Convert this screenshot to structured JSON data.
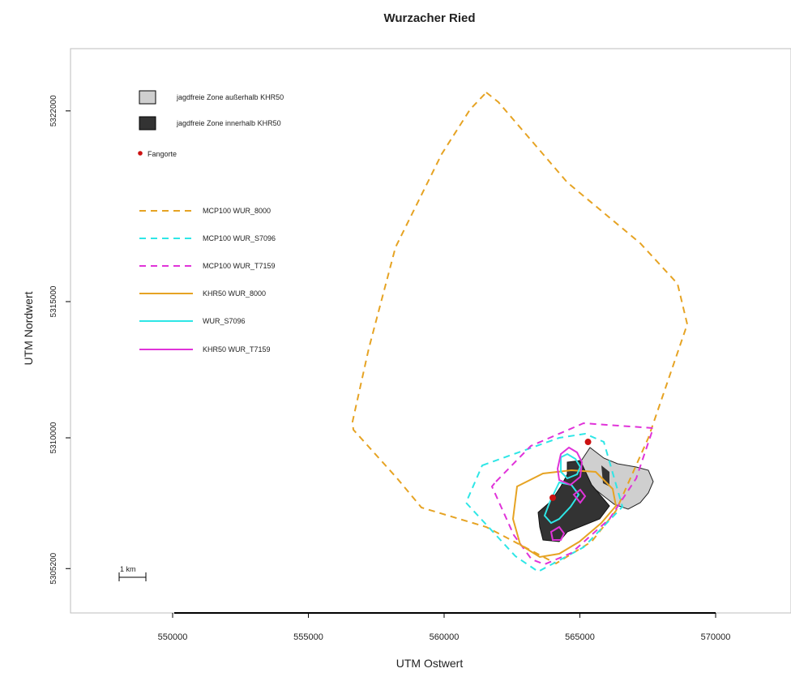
{
  "title": "Wurzacher Ried",
  "xlabel": "UTM Ostwert",
  "ylabel": "UTM Nordwert",
  "x_ticks": [
    {
      "value": 550000,
      "label": "550000"
    },
    {
      "value": 555000,
      "label": "555000"
    },
    {
      "value": 560000,
      "label": "560000"
    },
    {
      "value": 565000,
      "label": "565000"
    },
    {
      "value": 570000,
      "label": "570000"
    }
  ],
  "y_ticks": [
    {
      "value": 5305200,
      "label": "5305200"
    },
    {
      "value": 5310000,
      "label": "5310000"
    },
    {
      "value": 5315000,
      "label": "5315000"
    },
    {
      "value": 5322000,
      "label": "5322000"
    }
  ],
  "scale_bar": {
    "label": "1 km"
  },
  "legend": {
    "items": [
      {
        "key": "zone-outside",
        "label": "jagdfreie Zone außerhalb KHR50",
        "symbol": "box",
        "fill": "#cfcfcf"
      },
      {
        "key": "zone-inside",
        "label": "jagdfreie Zone innerhalb KHR50",
        "symbol": "box",
        "fill": "#333333"
      },
      {
        "key": "fangorte",
        "label": "Fangorte",
        "symbol": "point",
        "fill": "#cc1111"
      },
      {
        "key": "mcp-8000",
        "label": "MCP100 WUR_8000",
        "symbol": "line",
        "stroke": "#e6a323",
        "dash": true
      },
      {
        "key": "mcp-s7096",
        "label": "MCP100 WUR_S7096",
        "symbol": "line",
        "stroke": "#2ee6e6",
        "dash": true
      },
      {
        "key": "mcp-t7159",
        "label": "MCP100 WUR_T7159",
        "symbol": "line",
        "stroke": "#e033d9",
        "dash": true
      },
      {
        "key": "khr-8000",
        "label": "KHR50 WUR_8000",
        "symbol": "line",
        "stroke": "#e6a323",
        "dash": false
      },
      {
        "key": "khr-s7096",
        "label": "WUR_S7096",
        "symbol": "line",
        "stroke": "#2ee6e6",
        "dash": false
      },
      {
        "key": "khr-t7159",
        "label": "KHR50 WUR_T7159",
        "symbol": "line",
        "stroke": "#e033d9",
        "dash": false
      }
    ]
  },
  "colors": {
    "orange": "#e6a323",
    "cyan": "#2ee6e6",
    "magenta": "#e033d9",
    "zone_outside": "#cfcfcf",
    "zone_inside": "#333333",
    "capture": "#cc1111"
  },
  "capture_sites": [
    {
      "x": 565300,
      "y": 5309850
    },
    {
      "x": 564000,
      "y": 5307800
    }
  ]
}
